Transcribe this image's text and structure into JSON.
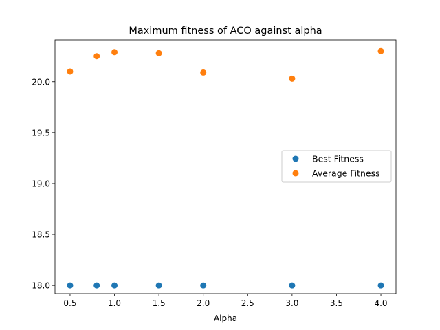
{
  "chart_data": {
    "type": "scatter",
    "title": "Maximum fitness of ACO against alpha",
    "xlabel": "Alpha",
    "ylabel": "",
    "xlim": [
      0.33,
      4.17
    ],
    "ylim": [
      17.92,
      20.41
    ],
    "xticks": [
      0.5,
      1.0,
      1.5,
      2.0,
      2.5,
      3.0,
      3.5,
      4.0
    ],
    "xtick_labels": [
      "0.5",
      "1.0",
      "1.5",
      "2.0",
      "2.5",
      "3.0",
      "3.5",
      "4.0"
    ],
    "yticks": [
      18.0,
      18.5,
      19.0,
      19.5,
      20.0
    ],
    "ytick_labels": [
      "18.0",
      "18.5",
      "19.0",
      "19.5",
      "20.0"
    ],
    "grid": false,
    "legend_position": "center-right",
    "series": [
      {
        "name": "Best Fitness",
        "color": "#1f77b4",
        "x": [
          0.5,
          0.8,
          1.0,
          1.5,
          2.0,
          3.0,
          4.0
        ],
        "y": [
          18.0,
          18.0,
          18.0,
          18.0,
          18.0,
          18.0,
          18.0
        ]
      },
      {
        "name": "Average Fitness",
        "color": "#ff7f0e",
        "x": [
          0.5,
          0.8,
          1.0,
          1.5,
          2.0,
          3.0,
          4.0
        ],
        "y": [
          20.1,
          20.25,
          20.29,
          20.28,
          20.09,
          20.03,
          20.3
        ]
      }
    ]
  }
}
